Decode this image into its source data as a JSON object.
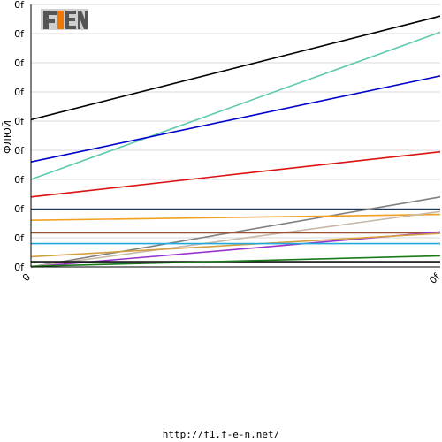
{
  "chart_data": {
    "type": "line",
    "ylabel": "ФЛЮЙ",
    "y_tick_labels": [
      "0f",
      "0f",
      "0f",
      "0f",
      "0f",
      "0f",
      "0f",
      "0f",
      "0f",
      "0f"
    ],
    "x_tick_labels": [
      "0",
      "0f"
    ],
    "x": [
      0,
      1
    ],
    "ylim": [
      0,
      9
    ],
    "xlim": [
      0,
      1
    ],
    "grid": true,
    "series": [
      {
        "color": "#000000",
        "values": [
          5.05,
          8.6
        ]
      },
      {
        "color": "#5fc9b0",
        "values": [
          3.0,
          8.05
        ]
      },
      {
        "color": "#0000cc",
        "values": [
          3.6,
          6.55
        ]
      },
      {
        "color": "#dd1111",
        "values": [
          2.4,
          3.95
        ]
      },
      {
        "color": "#1a3a5c",
        "values": [
          1.98,
          1.98
        ]
      },
      {
        "color": "#808080",
        "values": [
          0.0,
          2.4
        ]
      },
      {
        "color": "#f0a020",
        "values": [
          1.6,
          1.8
        ]
      },
      {
        "color": "#c8b8a8",
        "values": [
          0.0,
          1.9
        ]
      },
      {
        "color": "#a0522d",
        "values": [
          1.17,
          1.17
        ]
      },
      {
        "color": "#9932cc",
        "values": [
          0.0,
          1.2
        ]
      },
      {
        "color": "#d4a040",
        "values": [
          0.35,
          1.15
        ]
      },
      {
        "color": "#22aadd",
        "values": [
          0.8,
          0.8
        ]
      },
      {
        "color": "#111111",
        "values": [
          0.18,
          0.18
        ]
      },
      {
        "color": "#1a7a1a",
        "values": [
          0.02,
          0.38
        ]
      }
    ]
  },
  "logo": {
    "text": "F1EN"
  },
  "footer": {
    "url": "http://f1.f-e-n.net/"
  }
}
